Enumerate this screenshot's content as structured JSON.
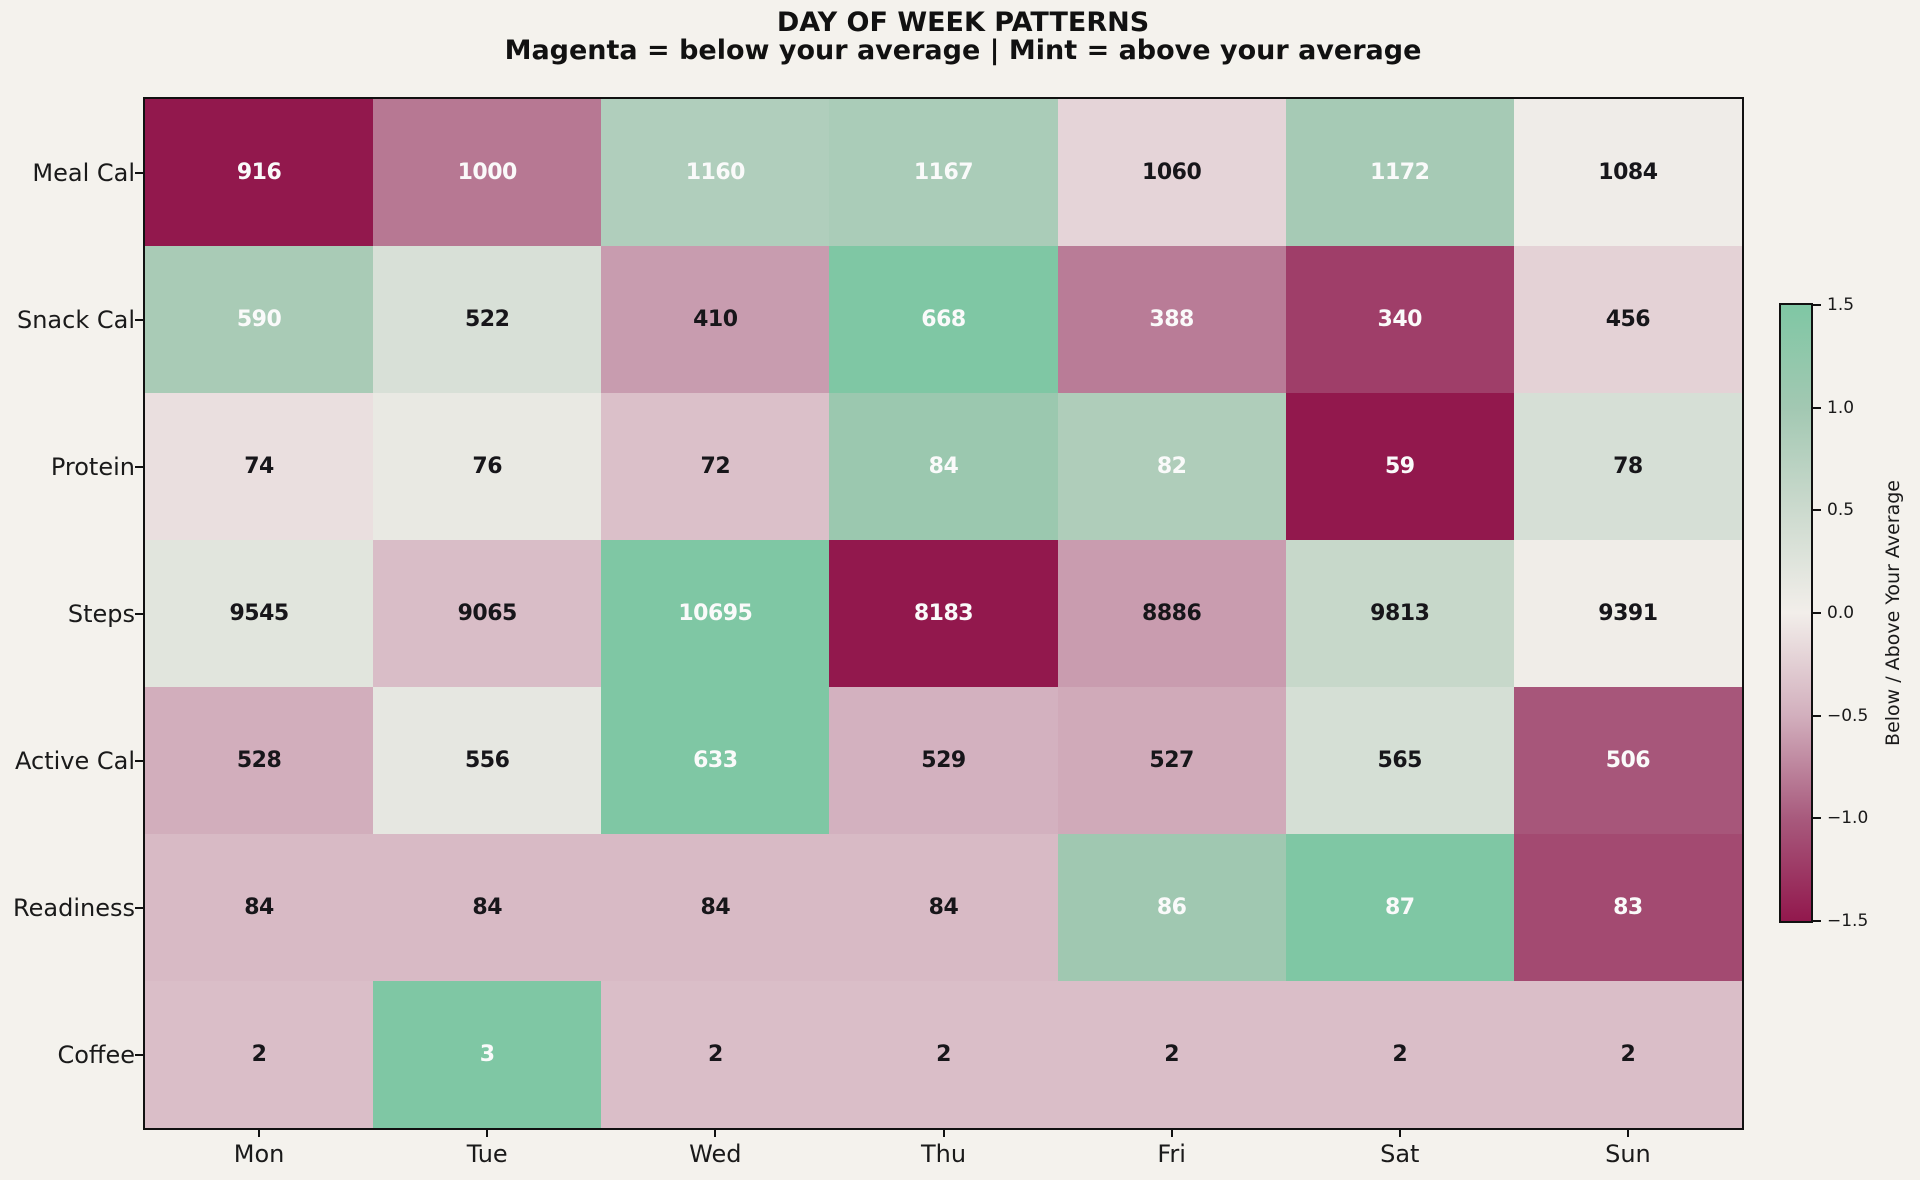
{
  "title": {
    "line1": "DAY OF WEEK PATTERNS",
    "line2": "Magenta = below your average | Mint = above your average"
  },
  "chart_data": {
    "type": "heatmap",
    "columns": [
      "Mon",
      "Tue",
      "Wed",
      "Thu",
      "Fri",
      "Sat",
      "Sun"
    ],
    "rows": [
      {
        "label": "Meal Cal",
        "values": [
          916,
          1000,
          1160,
          1167,
          1060,
          1172,
          1084
        ]
      },
      {
        "label": "Snack Cal",
        "values": [
          590,
          522,
          410,
          668,
          388,
          340,
          456
        ]
      },
      {
        "label": "Protein",
        "values": [
          74,
          76,
          72,
          84,
          82,
          59,
          78
        ]
      },
      {
        "label": "Steps",
        "values": [
          9545,
          9065,
          10695,
          8183,
          8886,
          9813,
          9391
        ]
      },
      {
        "label": "Active Cal",
        "values": [
          528,
          556,
          633,
          529,
          527,
          565,
          506
        ]
      },
      {
        "label": "Readiness",
        "values": [
          84,
          84,
          84,
          84,
          86,
          87,
          83
        ]
      },
      {
        "label": "Coffee",
        "values": [
          2,
          3,
          2,
          2,
          2,
          2,
          2
        ]
      }
    ],
    "normalization": "row-wise z-score (sample std), clipped to [-1.5, 1.5]",
    "colorbar": {
      "label": "Below / Above Your Average",
      "ticks": [
        "1.5",
        "1.0",
        "0.5",
        "0.0",
        "−0.5",
        "−1.0",
        "−1.5"
      ],
      "tick_values": [
        1.5,
        1.0,
        0.5,
        0.0,
        -0.5,
        -1.0,
        -1.5
      ],
      "vmin": -1.5,
      "vmax": 1.5
    },
    "colormap": {
      "anchors": [
        {
          "z": -1.5,
          "color": "#92184D"
        },
        {
          "z": -1.0,
          "color": "#A85A7D"
        },
        {
          "z": -0.5,
          "color": "#D2AFBD"
        },
        {
          "z": 0.0,
          "color": "#F2EEEA"
        },
        {
          "z": 0.5,
          "color": "#CCDACE"
        },
        {
          "z": 1.0,
          "color": "#A2C8B2"
        },
        {
          "z": 1.5,
          "color": "#7FC7A4"
        }
      ]
    },
    "annotation_style": {
      "light_text": "#FAFAFA",
      "dark_text": "#17161A",
      "light_text_threshold": 0.75
    }
  },
  "colors": {
    "background": "#F4F2ED",
    "axis": "#111111",
    "label_text": "#1A1A1A"
  }
}
